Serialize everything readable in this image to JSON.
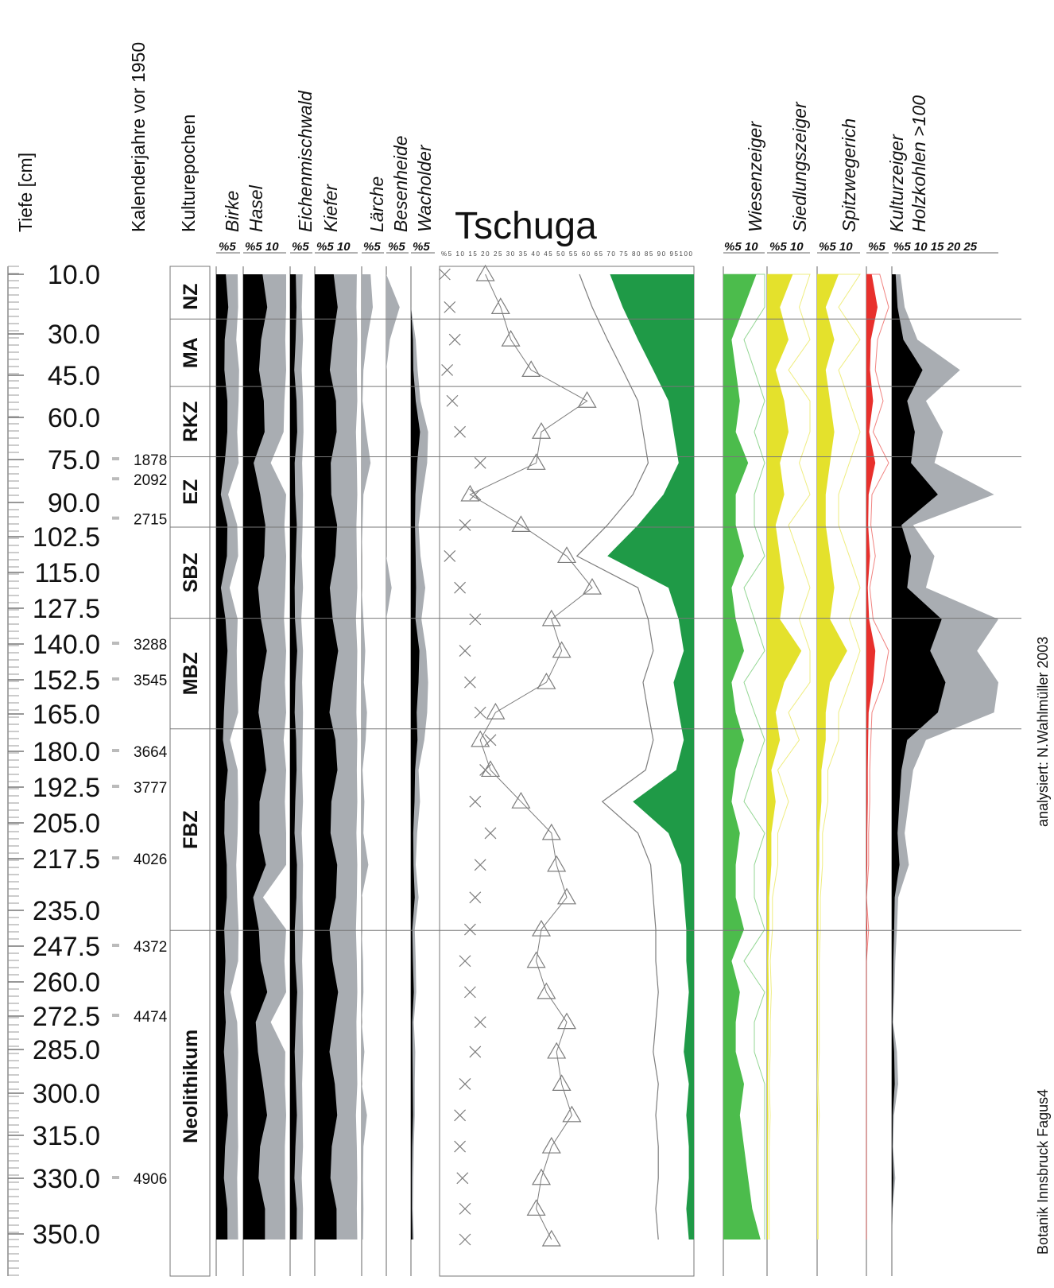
{
  "title": "Tschuga",
  "axis_labels": {
    "depth": "Tiefe [cm]",
    "years": "Kalenderjahre vor 1950",
    "epochs": "Kulturepochen"
  },
  "credits": {
    "analyst": "analysiert:  N.Wahlmüller 2003",
    "institute": "Botanik Innsbruck   Fagus4"
  },
  "colors": {
    "taxon_grey": "#a9adb2",
    "black": "#000000",
    "ap_green": "#1f9a47",
    "meadow_green": "#4cbc4c",
    "settlement_yellow": "#e4e12c",
    "culture_red": "#e8302c",
    "line_grey": "#7d7d7d"
  },
  "chart_data": {
    "type": "area",
    "depth_ticks": [
      "10.0",
      "30.0",
      "45.0",
      "60.0",
      "75.0",
      "90.0",
      "102.5",
      "115.0",
      "127.5",
      "140.0",
      "152.5",
      "165.0",
      "180.0",
      "192.5",
      "205.0",
      "217.5",
      "235.0",
      "247.5",
      "260.0",
      "272.5",
      "285.0",
      "300.0",
      "315.0",
      "330.0",
      "350.0"
    ],
    "calendar_years": [
      {
        "depth": 75.0,
        "year": "1878"
      },
      {
        "depth": 82.0,
        "year": "2092"
      },
      {
        "depth": 96.0,
        "year": "2715"
      },
      {
        "depth": 140.0,
        "year": "3288"
      },
      {
        "depth": 152.5,
        "year": "3545"
      },
      {
        "depth": 180.0,
        "year": "3664"
      },
      {
        "depth": 192.5,
        "year": "3777"
      },
      {
        "depth": 217.5,
        "year": "4026"
      },
      {
        "depth": 247.5,
        "year": "4372"
      },
      {
        "depth": 272.5,
        "year": "4474"
      },
      {
        "depth": 330.0,
        "year": "4906"
      }
    ],
    "epochs": [
      {
        "label": "NZ",
        "from": 10,
        "to": 25
      },
      {
        "label": "MA",
        "from": 25,
        "to": 49
      },
      {
        "label": "RKZ",
        "from": 49,
        "to": 74
      },
      {
        "label": "EZ",
        "from": 74,
        "to": 99
      },
      {
        "label": "SBZ",
        "from": 99,
        "to": 131
      },
      {
        "label": "MBZ",
        "from": 131,
        "to": 171
      },
      {
        "label": "FBZ",
        "from": 171,
        "to": 242
      },
      {
        "label": "Neolithikum",
        "from": 242,
        "to": 353
      }
    ],
    "zone_boundaries": [
      25,
      49,
      74,
      99,
      131,
      171,
      242
    ],
    "curves": [
      {
        "name": "Birke",
        "scale_label": "%5",
        "color": "grey",
        "values": [
          4.5,
          4.6,
          4.2,
          4.8,
          4.7,
          4.4,
          4.7,
          2.5,
          4.4,
          4.6,
          2.8,
          4.5,
          4.3,
          4.4,
          4.6,
          2.9,
          4.5,
          4.6,
          4.5,
          4.2,
          4.4,
          4.7,
          4.6,
          3.0,
          4.4,
          4.6,
          4.5,
          4.5,
          4.6,
          4.4,
          4.5,
          4.6
        ]
      },
      {
        "name": "Hasel",
        "scale_label": "%5 10",
        "color": "grey",
        "values": [
          10,
          10.2,
          9.8,
          10.3,
          9.6,
          9.4,
          6.4,
          10.2,
          9.6,
          10,
          9.8,
          9.5,
          10,
          9.7,
          10.1,
          9.4,
          10,
          9.7,
          10,
          10,
          4.6,
          10.1,
          9.6,
          10.2,
          6.4,
          9.8,
          9.7,
          10.2,
          9.7,
          9.7,
          9.8,
          9.8
        ]
      },
      {
        "name": "Eichenmischwald",
        "scale_label": "%5",
        "color": "grey",
        "values": [
          2.8,
          2.6,
          2.9,
          2.6,
          2.9,
          3.0,
          2.7,
          2.9,
          2.8,
          2.6,
          2.9,
          2.5,
          2.9,
          2.7,
          2.9,
          2.8,
          2.7,
          2.9,
          2.6,
          2.9,
          2.8,
          2.9,
          2.7,
          2.9,
          2.8,
          2.9,
          2.7,
          2.8,
          2.9,
          2.6,
          2.9,
          2.8
        ]
      },
      {
        "name": "Kiefer",
        "scale_label": "%5 10",
        "color": "grey",
        "values": [
          9.8,
          9.7,
          9.9,
          9.8,
          9.9,
          9.6,
          9.8,
          9.9,
          9.7,
          9.8,
          9.9,
          9.6,
          9.9,
          9.8,
          9.7,
          9.9,
          9.8,
          9.9,
          9.7,
          9.9,
          9.8,
          9.6,
          9.8,
          9.9,
          9.7,
          9.8,
          9.9,
          9.6,
          9.8,
          9.9,
          9.8,
          9.9
        ]
      },
      {
        "name": "Lärche",
        "scale_label": "%5",
        "color": "grey",
        "values": [
          2.0,
          2.5,
          1.2,
          0.4,
          0.2,
          1.0,
          2.0,
          0.4,
          0.2,
          0.0,
          0.0,
          0.4,
          0.8,
          0.5,
          1.2,
          0.9,
          0.2,
          0.6,
          0.4,
          1.5,
          0.0,
          0.0,
          0.3,
          0.4,
          0.0,
          0.6,
          0.0,
          1.2,
          0.4,
          0.3,
          0.4,
          0.3
        ]
      },
      {
        "name": "Besenheide",
        "scale_label": "%5",
        "color": "grey",
        "values": [
          0.0,
          3.0,
          0.8,
          0.0,
          0.0,
          0.0,
          0.0,
          0.0,
          0.0,
          0.0,
          1.2,
          0.0,
          0.0,
          0.0,
          0.0,
          0.0,
          0.0,
          0.0,
          0.0,
          0.0,
          0.0,
          0.0,
          0.0,
          0.0,
          0.0,
          0.0,
          0.0,
          0.0,
          0.0,
          0.0,
          0.0,
          0.0
        ]
      },
      {
        "name": "Wacholder",
        "scale_label": "%5",
        "color": "grey",
        "values": [
          0.0,
          0.0,
          1.0,
          1.4,
          2.0,
          3.6,
          3.4,
          2.4,
          1.6,
          2.0,
          3.0,
          2.2,
          3.2,
          3.6,
          3.4,
          2.8,
          1.6,
          1.9,
          1.3,
          1.0,
          1.6,
          0.8,
          1.0,
          1.1,
          0.6,
          0.9,
          0.8,
          0.8,
          0.6,
          0.5,
          0.4,
          0.6
        ]
      },
      {
        "name": "Wiesenzeiger",
        "scale_label": "%5 10",
        "color": "meadow_green",
        "values": [
          8,
          5,
          2,
          3,
          4,
          3,
          6,
          3,
          3,
          5,
          2,
          3,
          5,
          2,
          3,
          5,
          3,
          2,
          4,
          3,
          3,
          5,
          2,
          4,
          3,
          3,
          5,
          4,
          5,
          6,
          7,
          9
        ]
      },
      {
        "name": "Siedlungszeiger",
        "scale_label": "%5 10",
        "color": "settlement_yellow",
        "values": [
          6,
          3,
          5,
          2,
          4,
          5,
          3,
          4,
          2,
          3,
          4,
          3,
          8,
          4,
          2,
          3,
          1,
          2,
          1,
          1,
          0.5,
          0.5,
          0.3,
          0.4,
          0.3,
          0.3,
          0.2,
          0.3,
          0.2,
          0.2,
          0.2,
          0.2
        ]
      },
      {
        "name": "Spitzwegerich",
        "scale_label": "%5 10",
        "color": "settlement_yellow",
        "values": [
          5,
          2,
          4,
          2,
          3,
          4,
          3,
          2,
          2,
          3,
          4,
          3,
          7,
          3,
          2,
          2,
          1,
          1,
          0.5,
          0.5,
          0.3,
          0.3,
          0.2,
          0.2,
          0.2,
          0.2,
          0.1,
          0.2,
          0.1,
          0.1,
          0.1,
          0.1
        ]
      },
      {
        "name": "Kulturzeiger",
        "scale_label": "%5",
        "color": "culture_red",
        "values": [
          1.2,
          2.5,
          1.0,
          0.8,
          1.5,
          0.6,
          2.0,
          0.5,
          0.4,
          0.8,
          0.3,
          0.6,
          2.0,
          1.5,
          0.5,
          0.4,
          0.3,
          0.3,
          0.2,
          0.2,
          0.0,
          0.2,
          0.0,
          0.0,
          0.0,
          0.0,
          0.0,
          0.0,
          0.0,
          0.0,
          0.0,
          0.0
        ]
      },
      {
        "name": "Holzkohlen >100",
        "scale_label": "%5 10 15 20 25",
        "color": "grey",
        "values": [
          2,
          3,
          6,
          16,
          8,
          12,
          10,
          24,
          5,
          10,
          8,
          26,
          20,
          28,
          24,
          8,
          5,
          4,
          3,
          4,
          1.5,
          1.2,
          0.8,
          0.6,
          0.3,
          1.2,
          1.5,
          0.5,
          0.3,
          0.8,
          0.2,
          0.0
        ]
      }
    ],
    "tree_pollen_percent": [
      {
        "label": "%5 10 15 20 25 30 35 40 45 50 55 60 65 70 75 80 85 90 95100"
      },
      {
        "ap": [
          67,
          72,
          78,
          84,
          90,
          92,
          94,
          88,
          78,
          66,
          90,
          94,
          96,
          92,
          94,
          96,
          93,
          76,
          90,
          95,
          96,
          97,
          97,
          98,
          97,
          96,
          98,
          97,
          98,
          98,
          97,
          98
        ]
      }
    ]
  }
}
